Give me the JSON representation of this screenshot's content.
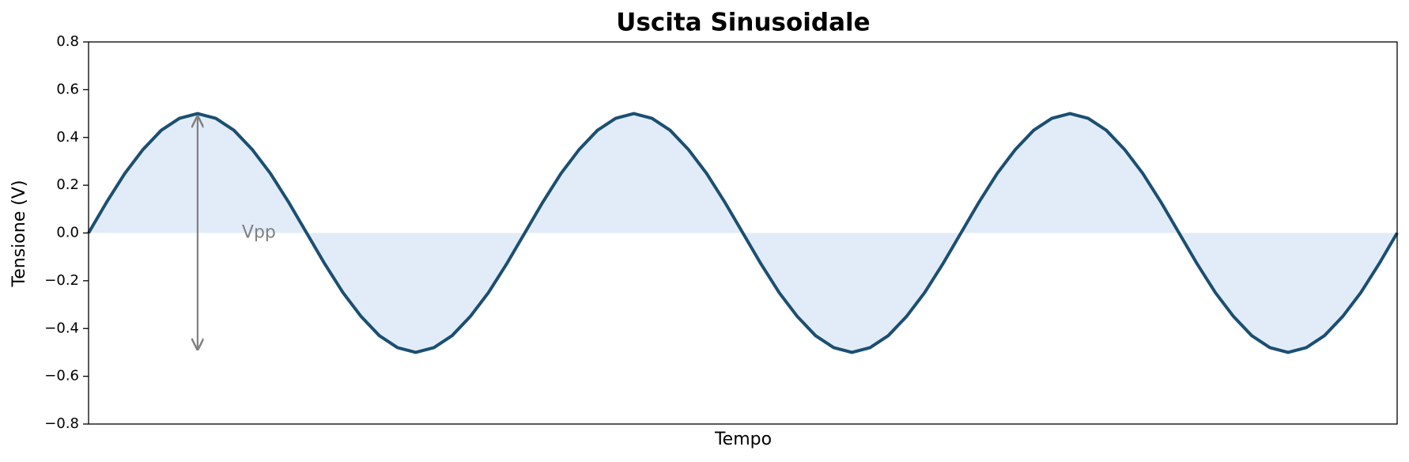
{
  "chart_data": {
    "type": "line",
    "title": "Uscita Sinusoidale",
    "x_label": "Tempo",
    "y_label": "Tensione (V)",
    "values": [
      0,
      0.13,
      0.25,
      0.35,
      0.43,
      0.48,
      0.5,
      0.48,
      0.43,
      0.35,
      0.25,
      0.13,
      0,
      -0.13,
      -0.25,
      -0.35,
      -0.43,
      -0.48,
      -0.5,
      -0.48,
      -0.43,
      -0.35,
      -0.25,
      -0.13,
      0,
      0.13,
      0.25,
      0.35,
      0.43,
      0.48,
      0.5,
      0.48,
      0.43,
      0.35,
      0.25,
      0.13,
      0,
      -0.13,
      -0.25,
      -0.35,
      -0.43,
      -0.48,
      -0.5,
      -0.48,
      -0.43,
      -0.35,
      -0.25,
      -0.13,
      0,
      0.13,
      0.25,
      0.35,
      0.43,
      0.48,
      0.5,
      0.48,
      0.43,
      0.35,
      0.25,
      0.13,
      0,
      -0.13,
      -0.25,
      -0.35,
      -0.43,
      -0.48,
      -0.5,
      -0.48,
      -0.43,
      -0.35,
      -0.25,
      -0.13,
      0
    ],
    "color": "#1b4f72",
    "fill_color": "#cfe0f3",
    "fill": true,
    "ylim": [
      -0.8,
      0.8
    ],
    "yticks": [
      {
        "value": -0.8,
        "label": "−0.8"
      },
      {
        "value": -0.6,
        "label": "−0.6"
      },
      {
        "value": -0.4,
        "label": "−0.4"
      },
      {
        "value": -0.2,
        "label": "−0.2"
      },
      {
        "value": 0,
        "label": "0.0"
      },
      0.2,
      0.4,
      0.6,
      0.8
    ],
    "annotation": {
      "text": "Vpp",
      "from": 0.5,
      "to": -0.5,
      "color": "#808080"
    }
  }
}
